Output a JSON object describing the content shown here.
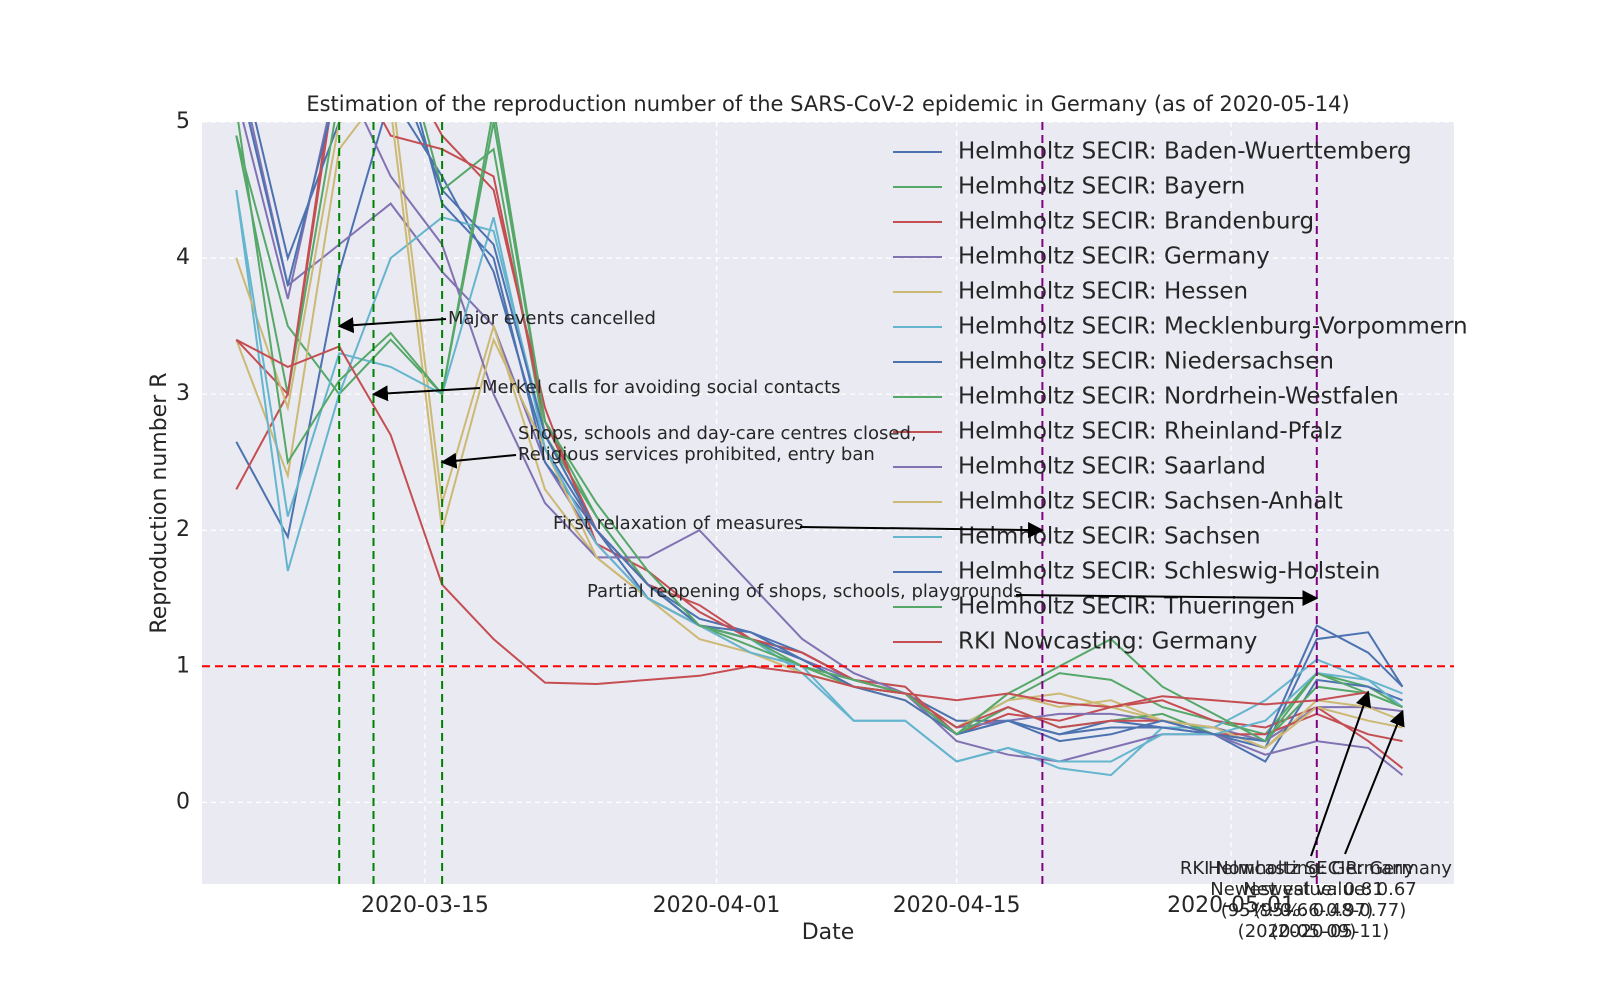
{
  "chart_data": {
    "type": "line",
    "title": "Estimation of the reproduction number of the SARS-CoV-2 epidemic in Germany (as of 2020-05-14)",
    "x_label": "Date",
    "y_label": "Reproduction number R",
    "x": [
      "2020-03-04",
      "2020-03-07",
      "2020-03-10",
      "2020-03-13",
      "2020-03-16",
      "2020-03-19",
      "2020-03-22",
      "2020-03-25",
      "2020-03-28",
      "2020-03-31",
      "2020-04-03",
      "2020-04-06",
      "2020-04-09",
      "2020-04-12",
      "2020-04-15",
      "2020-04-18",
      "2020-04-21",
      "2020-04-24",
      "2020-04-27",
      "2020-04-30",
      "2020-05-03",
      "2020-05-06",
      "2020-05-09",
      "2020-05-11"
    ],
    "xlim": [
      "2020-03-02",
      "2020-05-14"
    ],
    "xticks": [
      "2020-03-15",
      "2020-04-01",
      "2020-04-15",
      "2020-05-01"
    ],
    "ylim": [
      -0.6,
      5
    ],
    "yticks": [
      0,
      1,
      2,
      3,
      4,
      5
    ],
    "grid": true,
    "series": [
      {
        "name": "Helmholtz SECIR: Baden-Wuerttemberg",
        "color": "#4C72B0",
        "values": [
          2.65,
          1.95,
          3.9,
          5.2,
          4.6,
          3.9,
          2.6,
          2.0,
          1.6,
          1.35,
          1.25,
          1.1,
          0.9,
          0.8,
          0.6,
          0.6,
          0.5,
          0.6,
          0.55,
          0.5,
          0.4,
          1.2,
          1.25,
          0.85
        ]
      },
      {
        "name": "Helmholtz SECIR: Bayern",
        "color": "#55A868",
        "values": [
          4.9,
          3.5,
          3.0,
          3.4,
          3.0,
          5.0,
          2.8,
          2.1,
          1.6,
          1.3,
          1.2,
          1.05,
          0.85,
          0.8,
          0.55,
          0.75,
          0.95,
          0.9,
          0.7,
          0.6,
          0.5,
          0.95,
          0.85,
          0.7
        ]
      },
      {
        "name": "Helmholtz SECIR: Brandenburg",
        "color": "#C44E52",
        "values": [
          2.3,
          3.0,
          5.5,
          5.6,
          4.9,
          4.5,
          2.9,
          1.9,
          1.7,
          1.4,
          1.2,
          1.1,
          0.9,
          0.85,
          0.5,
          0.65,
          0.6,
          0.7,
          0.75,
          0.6,
          0.55,
          0.7,
          0.45,
          0.25
        ]
      },
      {
        "name": "Helmholtz SECIR: Germany",
        "color": "#8172B2",
        "values": [
          5.5,
          3.8,
          4.1,
          4.4,
          3.9,
          3.5,
          2.5,
          1.9,
          1.5,
          1.3,
          1.2,
          1.05,
          0.9,
          0.8,
          0.55,
          0.6,
          0.65,
          0.65,
          0.6,
          0.55,
          0.45,
          0.7,
          0.7,
          0.67
        ]
      },
      {
        "name": "Helmholtz SECIR: Hessen",
        "color": "#CCB974",
        "values": [
          3.4,
          2.4,
          4.8,
          5.3,
          2.2,
          3.5,
          2.3,
          1.8,
          1.5,
          1.2,
          1.1,
          1.0,
          0.85,
          0.8,
          0.55,
          0.75,
          0.8,
          0.7,
          0.6,
          0.55,
          0.4,
          0.75,
          0.7,
          0.6
        ]
      },
      {
        "name": "Helmholtz SECIR: Mecklenburg-Vorpommern",
        "color": "#64B5CD",
        "values": [
          4.5,
          1.7,
          3.0,
          4.0,
          4.3,
          4.2,
          2.7,
          2.0,
          1.6,
          1.3,
          1.2,
          0.95,
          0.6,
          0.6,
          0.3,
          0.4,
          0.25,
          0.2,
          0.55,
          0.55,
          0.75,
          1.05,
          0.9,
          0.8
        ]
      },
      {
        "name": "Helmholtz SECIR: Niedersachsen",
        "color": "#4C72B0",
        "values": [
          5.6,
          4.0,
          5.0,
          5.8,
          4.4,
          4.0,
          2.5,
          2.0,
          1.5,
          1.3,
          1.2,
          1.05,
          0.85,
          0.8,
          0.5,
          0.6,
          0.5,
          0.55,
          0.55,
          0.5,
          0.3,
          0.9,
          0.85,
          0.75
        ]
      },
      {
        "name": "Helmholtz SECIR: Nordrhein-Westfalen",
        "color": "#55A868",
        "values": [
          4.9,
          3.0,
          5.2,
          5.9,
          4.5,
          4.8,
          2.7,
          2.1,
          1.6,
          1.3,
          1.15,
          1.0,
          0.85,
          0.8,
          0.5,
          0.7,
          0.55,
          0.6,
          0.65,
          0.5,
          0.45,
          0.85,
          0.8,
          0.7
        ]
      },
      {
        "name": "Helmholtz SECIR: Rheinland-Pfalz",
        "color": "#C44E52",
        "values": [
          3.4,
          3.0,
          5.6,
          4.9,
          4.8,
          4.6,
          2.8,
          2.0,
          1.6,
          1.45,
          1.2,
          1.1,
          0.9,
          0.8,
          0.55,
          0.7,
          0.55,
          0.6,
          0.6,
          0.5,
          0.5,
          0.65,
          0.5,
          0.45
        ]
      },
      {
        "name": "Helmholtz SECIR: Saarland",
        "color": "#8172B2",
        "values": [
          5.2,
          3.7,
          5.4,
          4.6,
          4.1,
          3.0,
          2.2,
          1.8,
          1.8,
          2.0,
          1.6,
          1.2,
          0.95,
          0.8,
          0.45,
          0.35,
          0.3,
          0.4,
          0.5,
          0.5,
          0.35,
          0.45,
          0.4,
          0.2
        ]
      },
      {
        "name": "Helmholtz SECIR: Sachsen-Anhalt",
        "color": "#CCB974",
        "values": [
          4.0,
          2.9,
          5.0,
          5.1,
          2.0,
          3.4,
          2.6,
          1.8,
          1.5,
          1.3,
          1.1,
          0.95,
          0.85,
          0.75,
          0.5,
          0.8,
          0.7,
          0.75,
          0.6,
          0.55,
          0.4,
          0.7,
          0.6,
          0.55
        ]
      },
      {
        "name": "Helmholtz SECIR: Sachsen",
        "color": "#64B5CD",
        "values": [
          4.5,
          2.1,
          3.3,
          3.2,
          3.0,
          4.3,
          2.6,
          1.9,
          1.5,
          1.3,
          1.1,
          1.0,
          0.6,
          0.6,
          0.3,
          0.4,
          0.3,
          0.3,
          0.5,
          0.5,
          0.6,
          0.95,
          0.9,
          0.7
        ]
      },
      {
        "name": "Helmholtz SECIR: Schleswig-Holstein",
        "color": "#4C72B0",
        "values": [
          5.4,
          3.8,
          5.3,
          5.5,
          4.5,
          4.1,
          2.7,
          2.0,
          1.6,
          1.3,
          1.25,
          1.05,
          0.85,
          0.75,
          0.5,
          0.6,
          0.45,
          0.5,
          0.6,
          0.5,
          0.45,
          1.3,
          1.1,
          0.85
        ]
      },
      {
        "name": "Helmholtz SECIR: Thueringen",
        "color": "#55A868",
        "values": [
          5.1,
          2.5,
          3.1,
          3.45,
          3.0,
          5.1,
          2.8,
          2.2,
          1.7,
          1.3,
          1.2,
          1.0,
          0.9,
          0.8,
          0.5,
          0.8,
          1.0,
          1.2,
          0.85,
          0.65,
          0.45,
          0.95,
          0.8,
          0.7
        ]
      },
      {
        "name": "RKI Nowcasting: Germany",
        "color": "#C44E52",
        "values": [
          3.4,
          3.2,
          3.35,
          2.7,
          1.6,
          1.2,
          0.88,
          0.87,
          0.9,
          0.93,
          1.0,
          0.95,
          0.85,
          0.8,
          0.75,
          0.8,
          0.73,
          0.7,
          0.78,
          0.75,
          0.72,
          0.75,
          0.81,
          null
        ]
      }
    ],
    "hline": {
      "y": 1,
      "color": "#ff0000"
    },
    "vlines": [
      {
        "x": "2020-03-10",
        "color": "#008000"
      },
      {
        "x": "2020-03-12",
        "color": "#008000"
      },
      {
        "x": "2020-03-16",
        "color": "#008000"
      },
      {
        "x": "2020-04-20",
        "color": "#800080"
      },
      {
        "x": "2020-05-06",
        "color": "#800080"
      }
    ],
    "annotations": [
      {
        "text": [
          "Major events cancelled"
        ],
        "x": "2020-03-10",
        "y": 3.5
      },
      {
        "text": [
          "Merkel calls for avoiding social contacts"
        ],
        "x": "2020-03-12",
        "y": 3.0
      },
      {
        "text": [
          "Shops, schools and day-care centres closed,",
          "Religious services prohibited, entry ban"
        ],
        "x": "2020-03-16",
        "y": 2.5
      },
      {
        "text": [
          "First relaxation of measures"
        ],
        "x": "2020-04-20",
        "y": 2.0
      },
      {
        "text": [
          "Partial reopening of shops, schools, playgrounds"
        ],
        "x": "2020-05-06",
        "y": 1.5
      },
      {
        "text": [
          "RKI Nowcasting: Germany",
          "Newest value: 0.81",
          "(95%: 0.66-0.97)",
          "(2020-05-09)"
        ],
        "x": "2020-05-09",
        "y": 0.81
      },
      {
        "text": [
          "Helmholtz SECIR: Germany",
          "Newest value: 0.67",
          "(95%: 0.48-0.77)",
          "(2020-05-11)"
        ],
        "x": "2020-05-11",
        "y": 0.67
      }
    ]
  }
}
